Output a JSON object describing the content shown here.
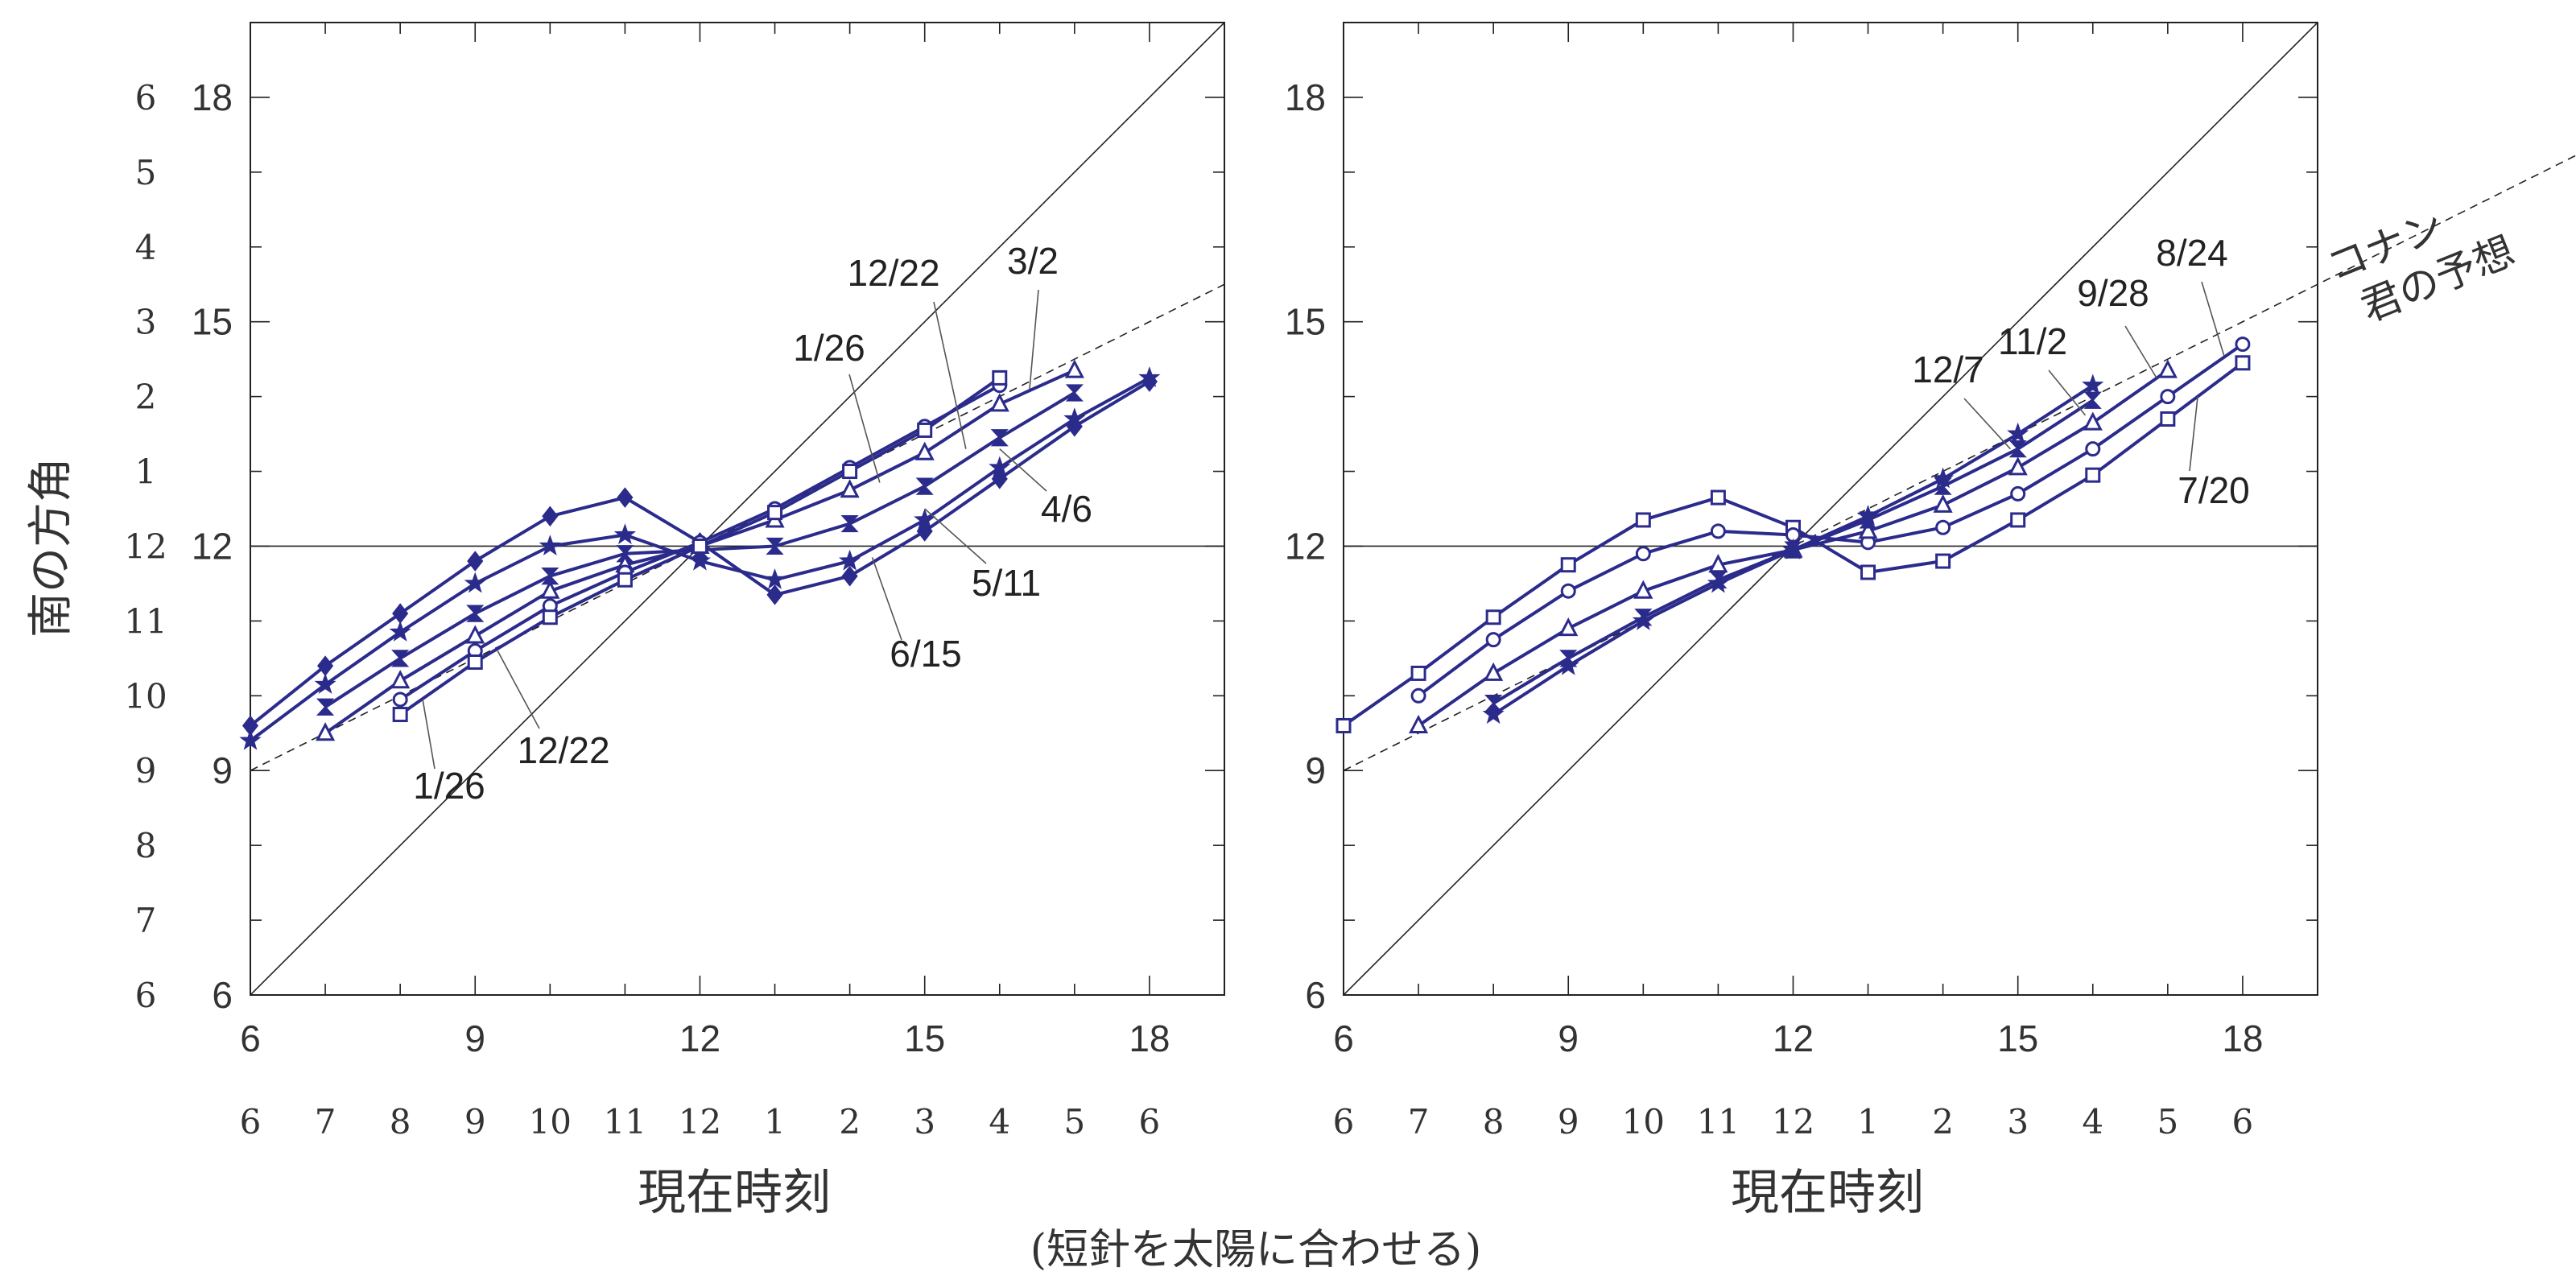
{
  "ylabel": "南の方角",
  "xlabel": "現在時刻",
  "caption": "(短針を太陽に合わせる)",
  "colors": {
    "series": "#2b2b8c",
    "axis": "#222222"
  },
  "chart_data": [
    {
      "type": "line",
      "panel": "left",
      "xlim": [
        6,
        19
      ],
      "ylim": [
        6,
        19
      ],
      "x_ticks": [
        "6",
        "9",
        "12",
        "15",
        "18"
      ],
      "x_clock_labels": [
        "6",
        "7",
        "8",
        "9",
        "10",
        "11",
        "12",
        "1",
        "2",
        "3",
        "4",
        "5",
        "6"
      ],
      "y_ticks": [
        "6",
        "9",
        "12",
        "15",
        "18"
      ],
      "y_clock_labels": [
        "6",
        "7",
        "8",
        "9",
        "10",
        "11",
        "12",
        "1",
        "2",
        "3",
        "4",
        "5",
        "6"
      ],
      "reference_lines": [
        "y=x",
        "y=12",
        "dashed: y=9+0.5*(x-6)"
      ],
      "series": [
        {
          "name": "12/22",
          "marker": "diamond",
          "x": [
            6,
            7,
            8,
            9,
            10,
            11,
            12,
            13,
            14,
            15,
            16,
            17,
            18
          ],
          "y": [
            9.6,
            10.4,
            11.1,
            11.8,
            12.4,
            12.65,
            12.05,
            11.35,
            11.6,
            12.2,
            12.9,
            13.6,
            14.2
          ]
        },
        {
          "name": "1/26",
          "marker": "star",
          "x": [
            6,
            7,
            8,
            9,
            10,
            11,
            12,
            13,
            14,
            15,
            16,
            17,
            18
          ],
          "y": [
            9.4,
            10.15,
            10.85,
            11.5,
            12.0,
            12.15,
            11.8,
            11.55,
            11.8,
            12.35,
            13.05,
            13.7,
            14.25
          ]
        },
        {
          "name": "3/2",
          "marker": "bowtie",
          "x": [
            7,
            8,
            9,
            10,
            11,
            12,
            13,
            14,
            15,
            16,
            17
          ],
          "y": [
            9.85,
            10.5,
            11.1,
            11.6,
            11.9,
            11.95,
            12.0,
            12.3,
            12.8,
            13.45,
            14.05
          ]
        },
        {
          "name": "4/6",
          "marker": "triangle",
          "x": [
            7,
            8,
            9,
            10,
            11,
            12,
            13,
            14,
            15,
            16,
            17
          ],
          "y": [
            9.5,
            10.2,
            10.8,
            11.4,
            11.75,
            12.0,
            12.35,
            12.75,
            13.25,
            13.9,
            14.35
          ]
        },
        {
          "name": "5/11",
          "marker": "circle",
          "x": [
            8,
            9,
            10,
            11,
            12,
            13,
            14,
            15,
            16
          ],
          "y": [
            9.95,
            10.6,
            11.2,
            11.65,
            12.05,
            12.5,
            13.05,
            13.6,
            14.15
          ]
        },
        {
          "name": "6/15",
          "marker": "square",
          "x": [
            8,
            9,
            10,
            11,
            12,
            13,
            14,
            15,
            16
          ],
          "y": [
            9.75,
            10.45,
            11.05,
            11.55,
            12.0,
            12.45,
            13.0,
            13.55,
            14.25
          ]
        }
      ]
    },
    {
      "type": "line",
      "panel": "right",
      "xlim": [
        6,
        19
      ],
      "ylim": [
        6,
        19
      ],
      "x_ticks": [
        "6",
        "9",
        "12",
        "15",
        "18"
      ],
      "x_clock_labels": [
        "6",
        "7",
        "8",
        "9",
        "10",
        "11",
        "12",
        "1",
        "2",
        "3",
        "4",
        "5",
        "6"
      ],
      "y_ticks": [
        "6",
        "9",
        "12",
        "15",
        "18"
      ],
      "reference_lines": [
        "y=x",
        "y=12",
        "dashed: y=9+0.5*(x-6)"
      ],
      "dashed_line_label": "コナン君の予想",
      "series": [
        {
          "name": "7/20",
          "marker": "square",
          "x": [
            6,
            7,
            8,
            9,
            10,
            11,
            12,
            13,
            14,
            15,
            16,
            17,
            18
          ],
          "y": [
            9.6,
            10.3,
            11.05,
            11.75,
            12.35,
            12.65,
            12.25,
            11.65,
            11.8,
            12.35,
            12.95,
            13.7,
            14.45
          ]
        },
        {
          "name": "8/24",
          "marker": "circle",
          "x": [
            7,
            8,
            9,
            10,
            11,
            12,
            13,
            14,
            15,
            16,
            17,
            18
          ],
          "y": [
            10.0,
            10.75,
            11.4,
            11.9,
            12.2,
            12.15,
            12.05,
            12.25,
            12.7,
            13.3,
            14.0,
            14.7
          ]
        },
        {
          "name": "9/28",
          "marker": "triangle",
          "x": [
            7,
            8,
            9,
            10,
            11,
            12,
            13,
            14,
            15,
            16,
            17
          ],
          "y": [
            9.6,
            10.3,
            10.9,
            11.4,
            11.75,
            11.95,
            12.2,
            12.55,
            13.05,
            13.65,
            14.35
          ]
        },
        {
          "name": "11/2",
          "marker": "bowtie",
          "x": [
            8,
            9,
            10,
            11,
            12,
            13,
            14,
            15,
            16
          ],
          "y": [
            9.9,
            10.5,
            11.05,
            11.55,
            11.95,
            12.35,
            12.8,
            13.3,
            13.95
          ]
        },
        {
          "name": "12/7",
          "marker": "star",
          "x": [
            8,
            9,
            10,
            11,
            12,
            13,
            14,
            15,
            16
          ],
          "y": [
            9.75,
            10.4,
            11.0,
            11.5,
            11.95,
            12.4,
            12.9,
            13.5,
            14.15
          ]
        }
      ]
    }
  ],
  "annotations": {
    "left": [
      {
        "text": "12/22",
        "series": "3/2"
      },
      {
        "text": "3/2",
        "series": "6/15"
      },
      {
        "text": "1/26",
        "series": "5/11"
      },
      {
        "text": "4/6",
        "series": "3/2"
      },
      {
        "text": "5/11",
        "series": "1/26"
      },
      {
        "text": "6/15",
        "series": "12/22"
      },
      {
        "text": "12/22",
        "series": "5/11"
      },
      {
        "text": "1/26",
        "series": "6/15"
      }
    ],
    "right": [
      {
        "text": "8/24",
        "series": "8/24"
      },
      {
        "text": "9/28",
        "series": "9/28"
      },
      {
        "text": "11/2",
        "series": "11/2"
      },
      {
        "text": "12/7",
        "series": "12/7"
      },
      {
        "text": "7/20",
        "series": "7/20"
      }
    ]
  }
}
